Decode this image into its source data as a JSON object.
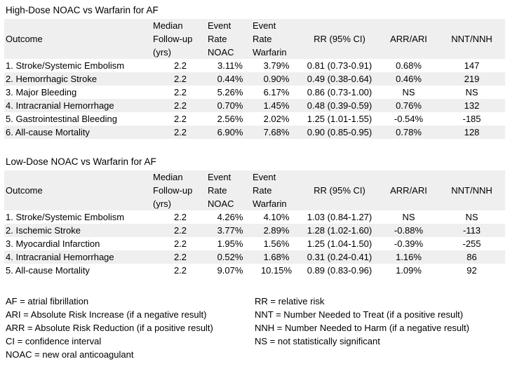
{
  "page": {
    "background_color": "#ffffff",
    "band_color": "#efefef",
    "text_color": "#000000"
  },
  "tables": [
    {
      "title": "High-Dose NOAC vs Warfarin for AF",
      "headers": [
        "Outcome",
        "Median\nFollow-up\n(yrs)",
        "Event\nRate\nNOAC",
        "Event\nRate\nWarfarin",
        "RR (95% CI)",
        "ARR/ARI",
        "NNT/NNH"
      ],
      "rows": [
        [
          "1. Stroke/Systemic Embolism",
          "2.2",
          "3.11%",
          "3.79%",
          "0.81 (0.73-0.91)",
          "0.68%",
          "147"
        ],
        [
          "2. Hemorrhagic Stroke",
          "2.2",
          "0.44%",
          "0.90%",
          "0.49 (0.38-0.64)",
          "0.46%",
          "219"
        ],
        [
          "3. Major Bleeding",
          "2.2",
          "5.26%",
          "6.17%",
          "0.86 (0.73-1.00)",
          "NS",
          "NS"
        ],
        [
          "4. Intracranial Hemorrhage",
          "2.2",
          "0.70%",
          "1.45%",
          "0.48 (0.39-0.59)",
          "0.76%",
          "132"
        ],
        [
          "5. Gastrointestinal Bleeding",
          "2.2",
          "2.56%",
          "2.02%",
          "1.25 (1.01-1.55)",
          "-0.54%",
          "-185"
        ],
        [
          "6. All-cause Mortality",
          "2.2",
          "6.90%",
          "7.68%",
          "0.90 (0.85-0.95)",
          "0.78%",
          "128"
        ]
      ]
    },
    {
      "title": "Low-Dose NOAC vs Warfarin for AF",
      "headers": [
        "Outcome",
        "Median\nFollow-up\n(yrs)",
        "Event\nRate\nNOAC",
        "Event\nRate\nWarfarin",
        "RR (95% CI)",
        "ARR/ARI",
        "NNT/NNH"
      ],
      "rows": [
        [
          "1. Stroke/Systemic Embolism",
          "2.2",
          "4.26%",
          "4.10%",
          "1.03 (0.84-1.27)",
          "NS",
          "NS"
        ],
        [
          "2. Ischemic Stroke",
          "2.2",
          "3.77%",
          "2.89%",
          "1.28 (1.02-1.60)",
          "-0.88%",
          "-113"
        ],
        [
          "3. Myocardial Infarction",
          "2.2",
          "1.95%",
          "1.56%",
          "1.25 (1.04-1.50)",
          "-0.39%",
          "-255"
        ],
        [
          "4. Intracranial Hemorrhage",
          "2.2",
          "0.52%",
          "1.68%",
          "0.31 (0.24-0.41)",
          "1.16%",
          "86"
        ],
        [
          "5. All-cause Mortality",
          "2.2",
          "9.07%",
          "10.15%",
          "0.89 (0.83-0.96)",
          "1.09%",
          "92"
        ]
      ]
    }
  ],
  "legend": {
    "left": [
      "AF = atrial fibrillation",
      "ARI = Absolute Risk Increase (if a negative result)",
      "ARR = Absolute Risk Reduction (if a positive result)",
      "CI = confidence interval",
      "NOAC = new oral anticoagulant"
    ],
    "right": [
      "RR = relative risk",
      "NNT = Number Needed to Treat (if a positive result)",
      "NNH = Number Needed to Harm (if a negative result)",
      "NS = not statistically significant"
    ]
  }
}
